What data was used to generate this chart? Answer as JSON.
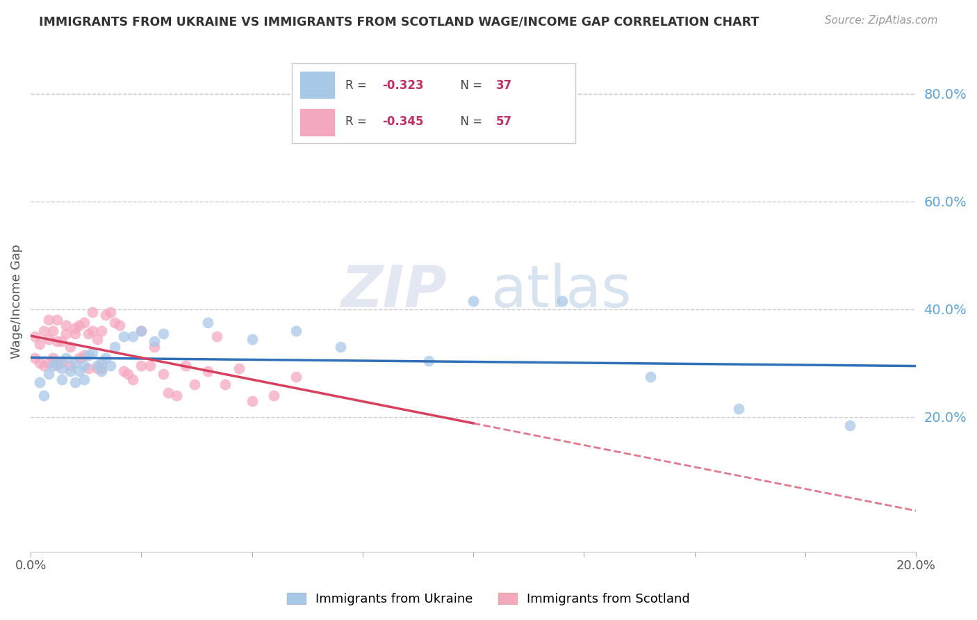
{
  "title": "IMMIGRANTS FROM UKRAINE VS IMMIGRANTS FROM SCOTLAND WAGE/INCOME GAP CORRELATION CHART",
  "source": "Source: ZipAtlas.com",
  "ylabel": "Wage/Income Gap",
  "right_yticks": [
    0.2,
    0.4,
    0.6,
    0.8
  ],
  "right_ytick_labels": [
    "20.0%",
    "40.0%",
    "60.0%",
    "80.0%"
  ],
  "ukraine_R": -0.323,
  "ukraine_N": 37,
  "scotland_R": -0.345,
  "scotland_N": 57,
  "ukraine_color": "#a8c8e8",
  "scotland_color": "#f4a8be",
  "ukraine_line_color": "#3070b8",
  "scotland_line_color": "#d84060",
  "background_color": "#ffffff",
  "grid_color": "#cccccc",
  "watermark_zip": "ZIP",
  "watermark_atlas": "atlas",
  "ukraine_x": [
    0.002,
    0.003,
    0.004,
    0.005,
    0.006,
    0.007,
    0.007,
    0.008,
    0.009,
    0.01,
    0.01,
    0.011,
    0.012,
    0.012,
    0.013,
    0.014,
    0.015,
    0.016,
    0.016,
    0.017,
    0.018,
    0.019,
    0.021,
    0.023,
    0.025,
    0.028,
    0.03,
    0.04,
    0.05,
    0.06,
    0.07,
    0.09,
    0.1,
    0.12,
    0.14,
    0.16,
    0.185
  ],
  "ukraine_y": [
    0.265,
    0.24,
    0.28,
    0.295,
    0.3,
    0.29,
    0.27,
    0.31,
    0.285,
    0.3,
    0.265,
    0.285,
    0.295,
    0.27,
    0.315,
    0.32,
    0.295,
    0.3,
    0.285,
    0.31,
    0.295,
    0.33,
    0.35,
    0.35,
    0.36,
    0.34,
    0.355,
    0.375,
    0.345,
    0.36,
    0.33,
    0.305,
    0.415,
    0.415,
    0.275,
    0.215,
    0.185
  ],
  "scotland_x": [
    0.001,
    0.001,
    0.002,
    0.002,
    0.003,
    0.003,
    0.004,
    0.004,
    0.004,
    0.005,
    0.005,
    0.006,
    0.006,
    0.006,
    0.007,
    0.007,
    0.008,
    0.008,
    0.009,
    0.009,
    0.01,
    0.01,
    0.011,
    0.011,
    0.012,
    0.012,
    0.013,
    0.013,
    0.014,
    0.014,
    0.015,
    0.015,
    0.016,
    0.016,
    0.017,
    0.018,
    0.019,
    0.02,
    0.021,
    0.022,
    0.023,
    0.025,
    0.025,
    0.027,
    0.028,
    0.03,
    0.031,
    0.033,
    0.035,
    0.037,
    0.04,
    0.042,
    0.044,
    0.047,
    0.05,
    0.055,
    0.06
  ],
  "scotland_y": [
    0.31,
    0.35,
    0.335,
    0.3,
    0.295,
    0.36,
    0.345,
    0.3,
    0.38,
    0.31,
    0.36,
    0.295,
    0.34,
    0.38,
    0.34,
    0.3,
    0.355,
    0.37,
    0.295,
    0.33,
    0.365,
    0.355,
    0.37,
    0.31,
    0.375,
    0.315,
    0.355,
    0.29,
    0.36,
    0.395,
    0.29,
    0.345,
    0.29,
    0.36,
    0.39,
    0.395,
    0.375,
    0.37,
    0.285,
    0.28,
    0.27,
    0.36,
    0.295,
    0.295,
    0.33,
    0.28,
    0.245,
    0.24,
    0.295,
    0.26,
    0.285,
    0.35,
    0.26,
    0.29,
    0.23,
    0.24,
    0.275
  ],
  "xlim": [
    0.0,
    0.2
  ],
  "ylim": [
    -0.05,
    0.88
  ],
  "xtick_positions": [
    0.0,
    0.025,
    0.05,
    0.075,
    0.1,
    0.125,
    0.15,
    0.175,
    0.2
  ],
  "xtick_labels_show": [
    "0.0%",
    "",
    "",
    "",
    "",
    "",
    "",
    "",
    "20.0%"
  ]
}
